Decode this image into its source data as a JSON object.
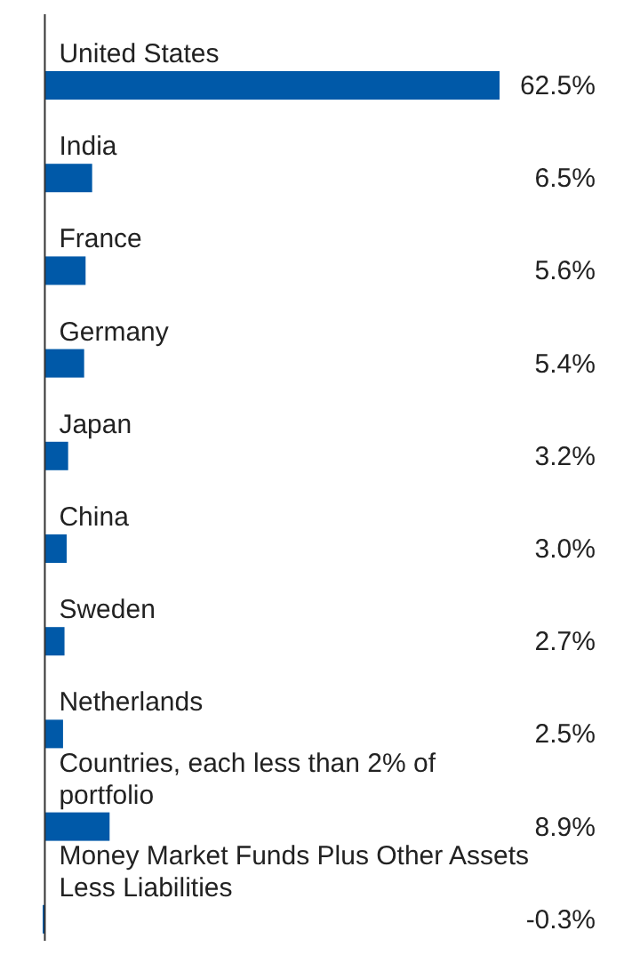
{
  "chart_data": {
    "type": "bar",
    "orientation": "horizontal",
    "categories": [
      "United States",
      "India",
      "France",
      "Germany",
      "Japan",
      "China",
      "Sweden",
      "Netherlands",
      "Countries, each less than 2% of portfolio",
      "Money Market Funds Plus Other Assets Less Liabilities"
    ],
    "values": [
      62.5,
      6.5,
      5.6,
      5.4,
      3.2,
      3.0,
      2.7,
      2.5,
      8.9,
      -0.3
    ],
    "value_labels": [
      "62.5%",
      "6.5%",
      "5.6%",
      "5.4%",
      "3.2%",
      "3.0%",
      "2.7%",
      "2.5%",
      "8.9%",
      "-0.3%"
    ],
    "color": "#0059a8"
  }
}
